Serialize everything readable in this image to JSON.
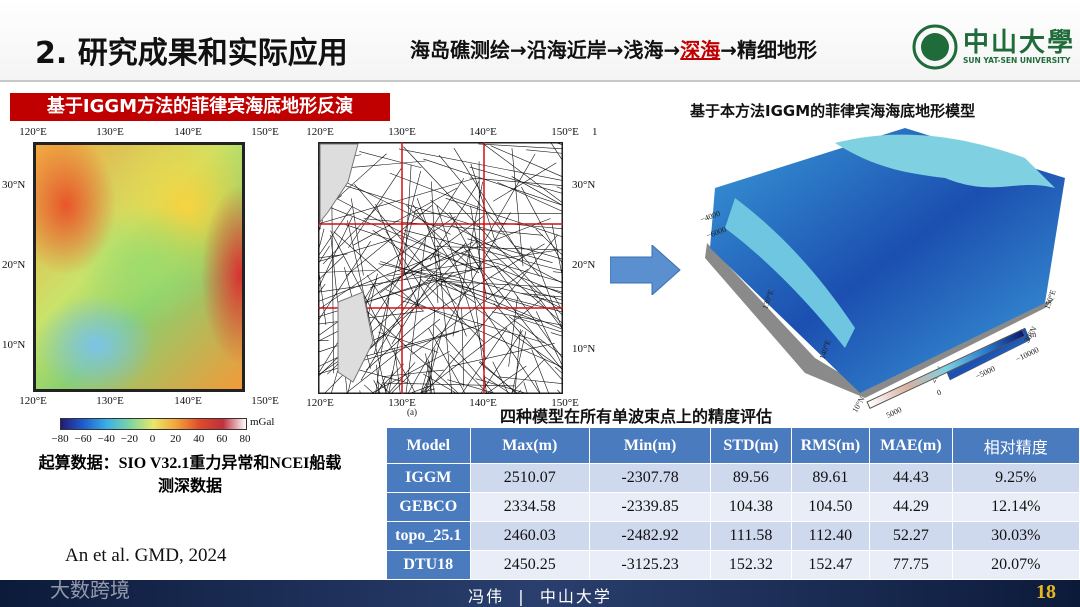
{
  "header": {
    "title": "2. 研究成果和实际应用",
    "path_before": "海岛礁测绘→沿海近岸→浅海→",
    "path_highlight": "深海",
    "path_after": "→精细地形",
    "logo_name": "中山大學",
    "logo_english": "SUN YAT-SEN UNIVERSITY"
  },
  "left_panel": {
    "banner": "基于IGGM方法的菲律宾海底地形反演",
    "gravity_map": {
      "top_labels": [
        "120°E",
        "130°E",
        "140°E",
        "150°E"
      ],
      "left_labels": [
        "30°N",
        "20°N",
        "10°N"
      ],
      "bottom_labels": [
        "120°E",
        "130°E",
        "140°E",
        "150°E"
      ],
      "colorbar_ticks": [
        "−80",
        "−60",
        "−40",
        "−20",
        "0",
        "20",
        "40",
        "60",
        "80"
      ],
      "colorbar_unit": "mGal"
    },
    "track_map": {
      "top_labels": [
        "120°E",
        "130°E",
        "140°E",
        "150°E"
      ],
      "top_right_label": "1",
      "right_labels": [
        "30°N",
        "20°N",
        "10°N"
      ],
      "bottom_labels": [
        "120°E",
        "130°E",
        "140°E",
        "150°E"
      ],
      "panel_label": "(a)"
    },
    "caption_lines": [
      "起算数据：SIO V32.1重力异常和NCEI船载",
      "测深数据"
    ],
    "reference": "An et al. GMD, 2024"
  },
  "right_panel": {
    "title": "基于本方法IGGM的菲律宾海海底地形模型",
    "depth_axis_labels": [
      "−4000",
      "−6000"
    ],
    "lon_labels": [
      "130°E",
      "140°E",
      "150°E"
    ],
    "lat_labels": [
      "30°N",
      "20°N",
      "10°N"
    ],
    "colorbar_ticks": [
      "5000",
      "0",
      "−5000",
      "−10000"
    ],
    "colorbar_unit": "m"
  },
  "table": {
    "title": "四种模型在所有单波束点上的精度评估",
    "header": [
      "Model",
      "Max(m)",
      "Min(m)",
      "STD(m)",
      "RMS(m)",
      "MAE(m)",
      "相对精度"
    ],
    "rows": [
      [
        "IGGM",
        "2510.07",
        "-2307.78",
        "89.56",
        "89.61",
        "44.43",
        "9.25%"
      ],
      [
        "GEBCO",
        "2334.58",
        "-2339.85",
        "104.38",
        "104.50",
        "44.29",
        "12.14%"
      ],
      [
        "topo_25.1",
        "2460.03",
        "-2482.92",
        "111.58",
        "112.40",
        "52.27",
        "30.03%"
      ],
      [
        "DTU18",
        "2450.25",
        "-3125.23",
        "152.32",
        "152.47",
        "77.75",
        "20.07%"
      ]
    ]
  },
  "footer": {
    "presenter": "冯伟",
    "separator": "|",
    "institution": "中山大学",
    "page_number": "18",
    "watermark": "大数跨境"
  }
}
